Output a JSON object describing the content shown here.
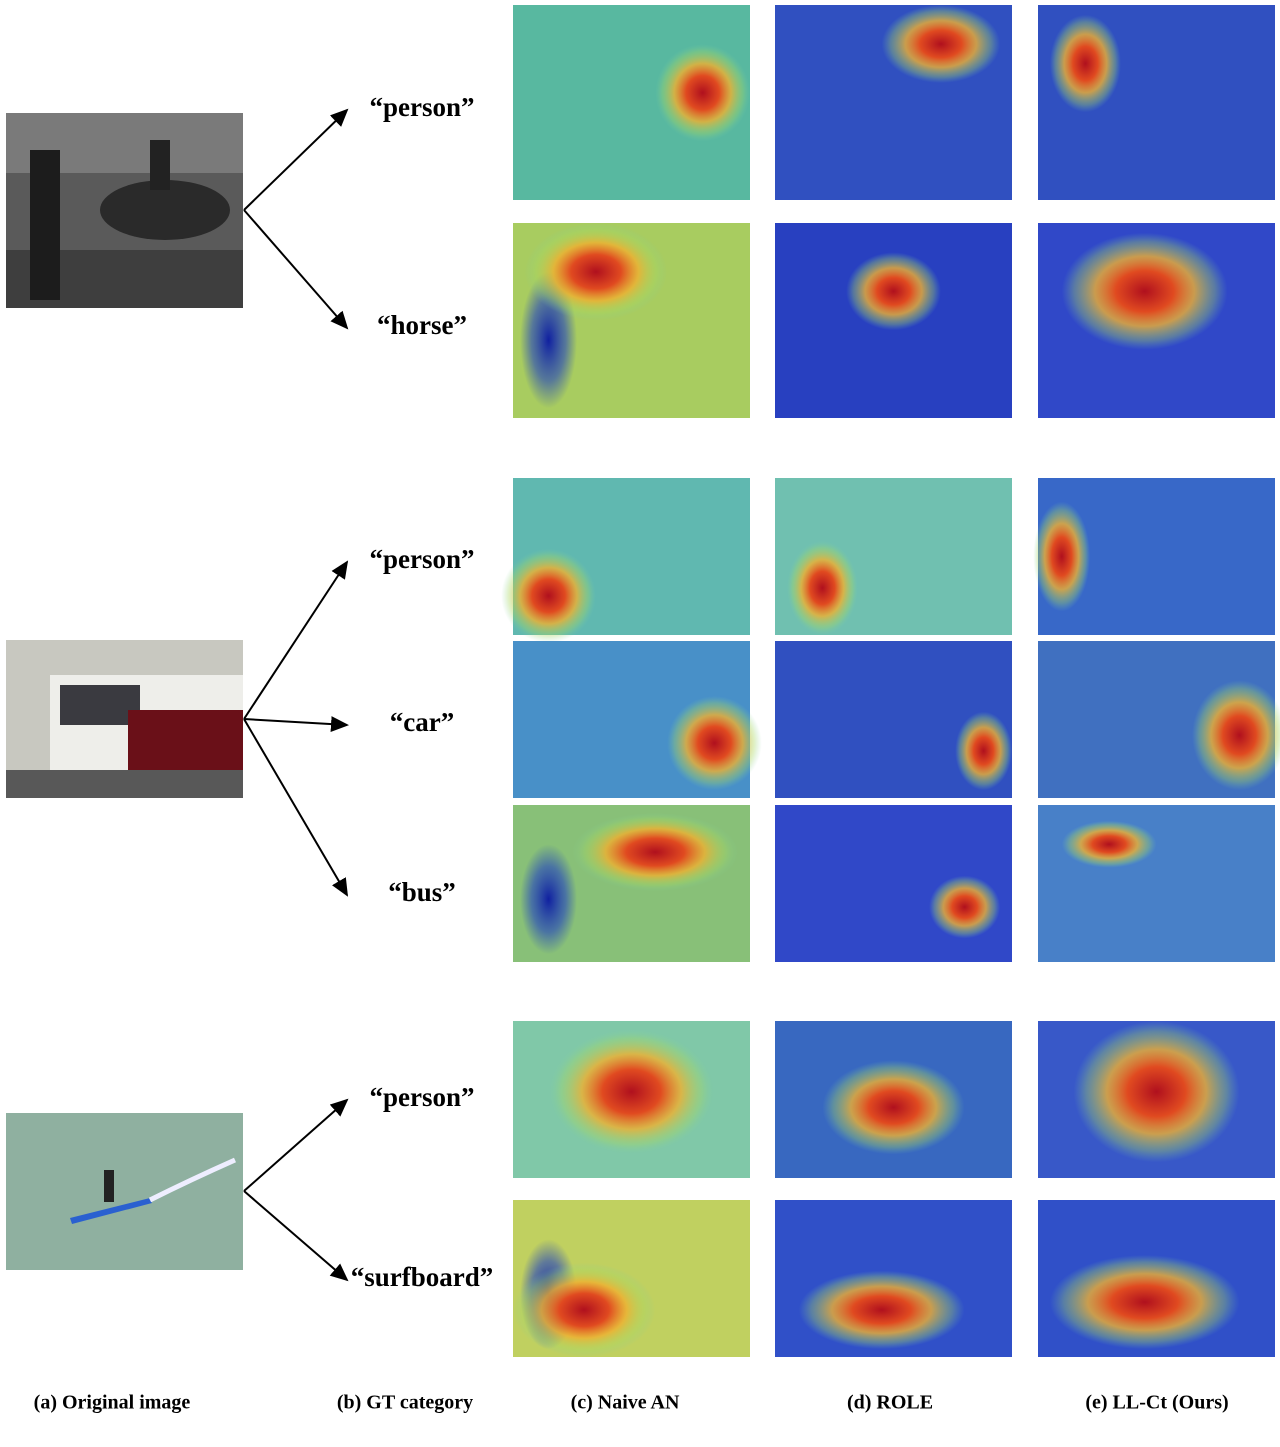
{
  "groups": [
    {
      "labels": [
        "“person”",
        "“horse”"
      ]
    },
    {
      "labels": [
        "“person”",
        "“car”",
        "“bus”"
      ]
    },
    {
      "labels": [
        "“person”",
        "“surfboard”"
      ]
    }
  ],
  "captions": [
    "(a) Original image",
    "(b) GT category",
    "(c) Naive AN",
    "(d) ROLE",
    "(e) LL-Ct (Ours)"
  ]
}
